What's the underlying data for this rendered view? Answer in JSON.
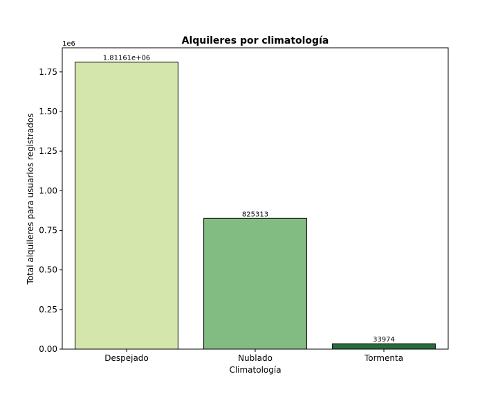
{
  "chart_data": {
    "type": "bar",
    "title": "Alquileres por climatología",
    "xlabel": "Climatología",
    "ylabel": "Total alquileres para usuarios registrados",
    "y_offset_label": "1e6",
    "categories": [
      "Despejado",
      "Nublado",
      "Tormenta"
    ],
    "values": [
      1811610,
      825313,
      33974
    ],
    "data_labels": [
      "1.81161e+06",
      "825313",
      "33974"
    ],
    "colors": [
      "#d4e6ab",
      "#82bc82",
      "#2a6b3b"
    ],
    "ylim": [
      0,
      1902190
    ],
    "yticks": [
      0,
      250000,
      500000,
      750000,
      1000000,
      1250000,
      1500000,
      1750000
    ],
    "ytick_labels": [
      "0.00",
      "0.25",
      "0.50",
      "0.75",
      "1.00",
      "1.25",
      "1.50",
      "1.75"
    ],
    "grid": false,
    "legend": "none"
  }
}
